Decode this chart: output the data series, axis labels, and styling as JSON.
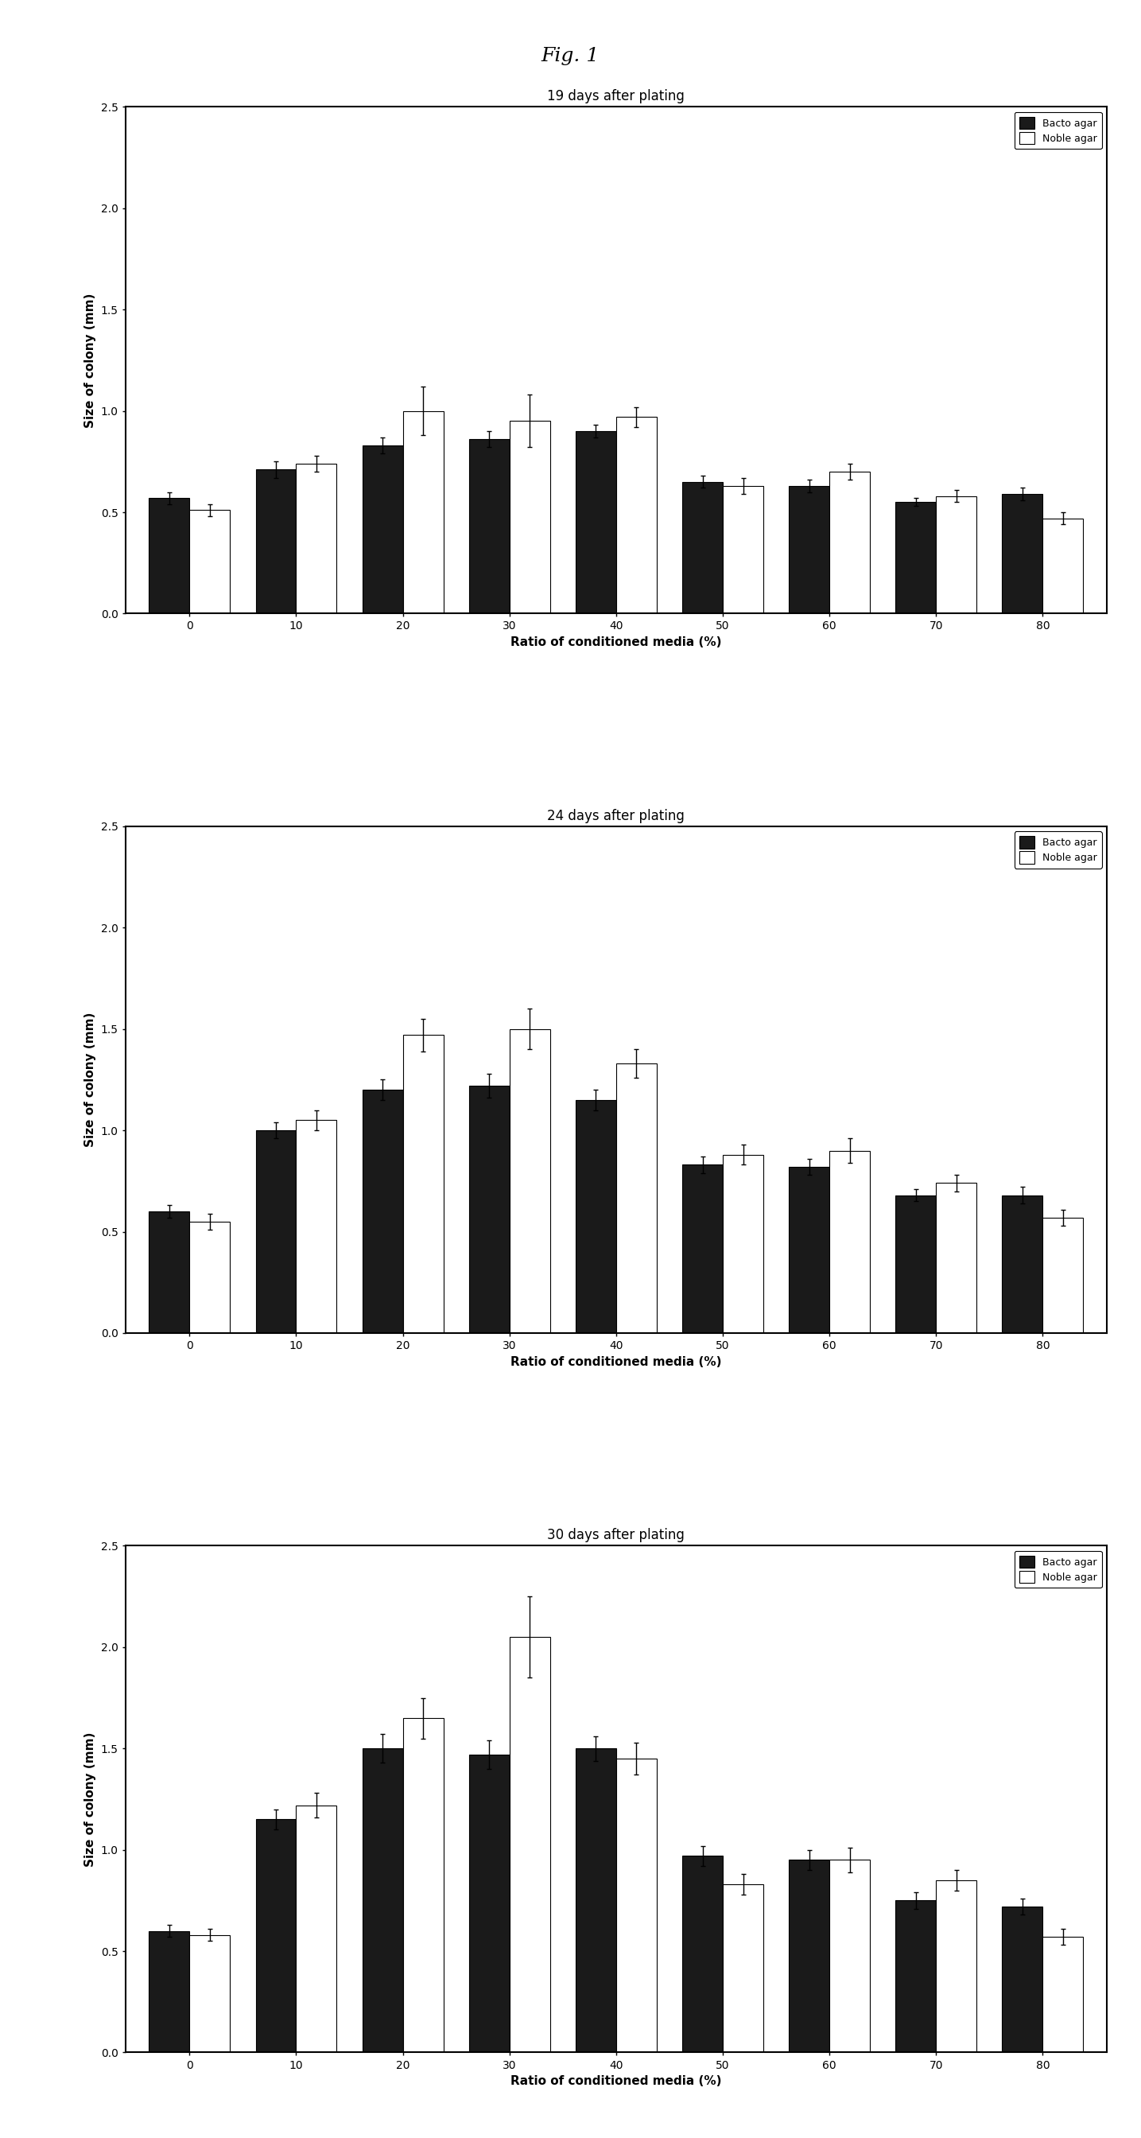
{
  "fig_title": "Fig. 1",
  "categories": [
    0,
    10,
    20,
    30,
    40,
    50,
    60,
    70,
    80
  ],
  "xlabel": "Ratio of conditioned media (%)",
  "ylabel": "Size of colony (mm)",
  "ylim": [
    0,
    2.5
  ],
  "yticks": [
    0.0,
    0.5,
    1.0,
    1.5,
    2.0,
    2.5
  ],
  "panels": [
    {
      "title": "19 days after plating",
      "bacto": [
        0.57,
        0.71,
        0.83,
        0.86,
        0.9,
        0.65,
        0.63,
        0.55,
        0.59
      ],
      "noble": [
        0.51,
        0.74,
        1.0,
        0.95,
        0.97,
        0.63,
        0.7,
        0.58,
        0.47
      ],
      "bacto_err": [
        0.03,
        0.04,
        0.04,
        0.04,
        0.03,
        0.03,
        0.03,
        0.02,
        0.03
      ],
      "noble_err": [
        0.03,
        0.04,
        0.12,
        0.13,
        0.05,
        0.04,
        0.04,
        0.03,
        0.03
      ]
    },
    {
      "title": "24 days after plating",
      "bacto": [
        0.6,
        1.0,
        1.2,
        1.22,
        1.15,
        0.83,
        0.82,
        0.68,
        0.68
      ],
      "noble": [
        0.55,
        1.05,
        1.47,
        1.5,
        1.33,
        0.88,
        0.9,
        0.74,
        0.57
      ],
      "bacto_err": [
        0.03,
        0.04,
        0.05,
        0.06,
        0.05,
        0.04,
        0.04,
        0.03,
        0.04
      ],
      "noble_err": [
        0.04,
        0.05,
        0.08,
        0.1,
        0.07,
        0.05,
        0.06,
        0.04,
        0.04
      ]
    },
    {
      "title": "30 days after plating",
      "bacto": [
        0.6,
        1.15,
        1.5,
        1.47,
        1.5,
        0.97,
        0.95,
        0.75,
        0.72
      ],
      "noble": [
        0.58,
        1.22,
        1.65,
        2.05,
        1.45,
        0.83,
        0.95,
        0.85,
        0.57
      ],
      "bacto_err": [
        0.03,
        0.05,
        0.07,
        0.07,
        0.06,
        0.05,
        0.05,
        0.04,
        0.04
      ],
      "noble_err": [
        0.03,
        0.06,
        0.1,
        0.2,
        0.08,
        0.05,
        0.06,
        0.05,
        0.04
      ]
    }
  ],
  "bacto_color": "#1a1a1a",
  "noble_color": "#ffffff",
  "bar_edgecolor": "#000000",
  "bar_width": 0.38,
  "legend_labels": [
    "Bacto agar",
    "Noble agar"
  ],
  "background_color": "#ffffff",
  "title_fontsize": 12,
  "label_fontsize": 11,
  "tick_fontsize": 10,
  "fig_title_fontsize": 18
}
